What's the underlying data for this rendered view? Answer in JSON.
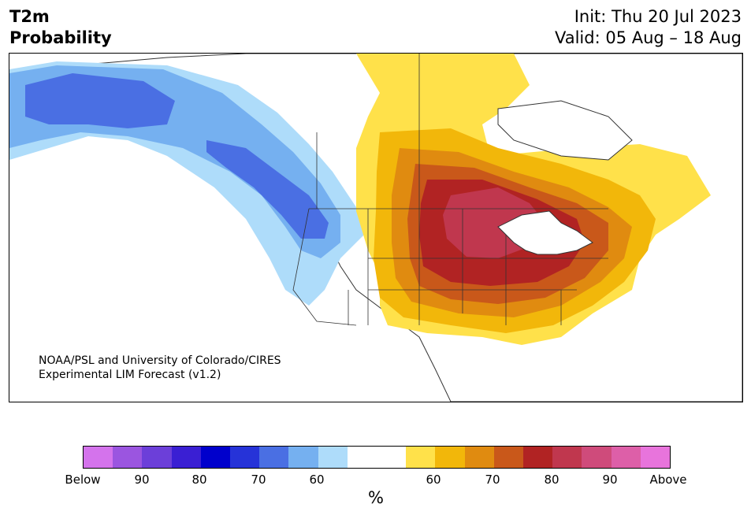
{
  "title": {
    "line1": "T2m",
    "line2": "Probability"
  },
  "dates": {
    "init": "Init: Thu 20 Jul 2023",
    "valid": "Valid: 05 Aug – 18 Aug"
  },
  "credit": {
    "line1": "NOAA/PSL and University of Colorado/CIRES",
    "line2": "Experimental LIM Forecast (v1.2)"
  },
  "colorbar": {
    "colors": [
      "#d473ec",
      "#9b55e0",
      "#6c3fd9",
      "#3a1fd3",
      "#0000cc",
      "#2633d8",
      "#4a6fe3",
      "#75b0f0",
      "#aedcfa",
      "#ffffff",
      "#ffffff",
      "#ffe14a",
      "#f2b70a",
      "#e08b10",
      "#c9581a",
      "#b12323",
      "#c0374e",
      "#cf4b7b",
      "#dd5fa8",
      "#e874dc"
    ],
    "tick_labels": [
      "Below",
      "90",
      "80",
      "70",
      "60",
      "60",
      "70",
      "80",
      "90",
      "Above"
    ],
    "unit": "%"
  }
}
